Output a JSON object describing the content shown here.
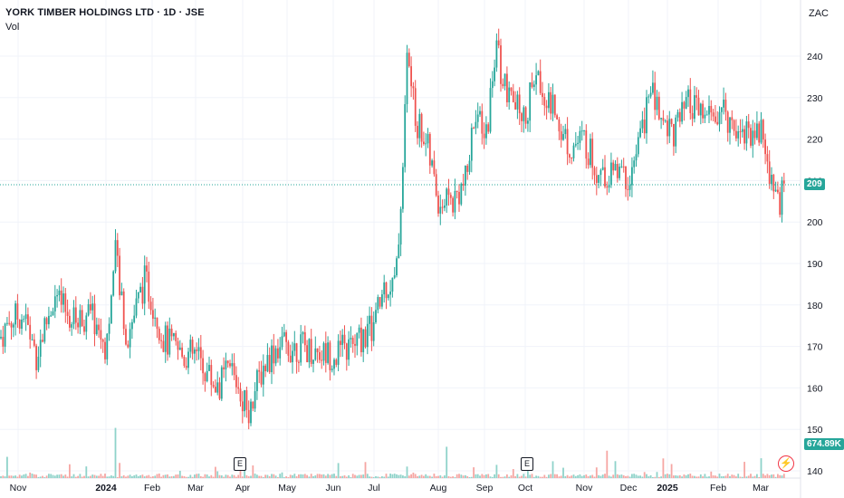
{
  "header": {
    "title": "YORK TIMBER HOLDINGS LTD · 1D · JSE",
    "indicator": "Vol",
    "currency": "ZAC"
  },
  "last_price_tag": "209",
  "volume_tag": "674.89K",
  "events": [
    {
      "label": "E",
      "date": "2024-04-02"
    },
    {
      "label": "E",
      "date": "2024-10-01"
    }
  ],
  "colors": {
    "up": "#26a69a",
    "down": "#ef5350",
    "vol_up": "#8fd3ca",
    "vol_down": "#f6a6a3",
    "grid": "#f0f3fa",
    "axis_text": "#131722"
  },
  "chart_data": {
    "type": "candlestick",
    "title": "YORK TIMBER HOLDINGS LTD · 1D · JSE",
    "y_ticks": [
      140,
      150,
      160,
      170,
      180,
      190,
      200,
      210,
      220,
      230,
      240
    ],
    "x_ticks": [
      "Nov",
      "2024",
      "Feb",
      "Mar",
      "Apr",
      "May",
      "Jun",
      "Jul",
      "Aug",
      "Sep",
      "Oct",
      "Nov",
      "Dec",
      "2025",
      "Feb",
      "Mar"
    ],
    "ylim": [
      138,
      250
    ],
    "last_price": 209,
    "segments": [
      {
        "x": "Nov-2023",
        "close": 172
      },
      {
        "x": "Dec-2023",
        "close": 175
      },
      {
        "x": "Jan-2024",
        "close": 180
      },
      {
        "x": "Feb-2024",
        "close": 180
      },
      {
        "x": "Mar-2024",
        "close": 168
      },
      {
        "x": "Apr-2024",
        "close": 160
      },
      {
        "x": "May-2024",
        "close": 168
      },
      {
        "x": "Jun-2024",
        "close": 170
      },
      {
        "x": "Jul-2024",
        "close": 215
      },
      {
        "x": "Aug-2024",
        "close": 208
      },
      {
        "x": "Sep-2024",
        "close": 230
      },
      {
        "x": "Oct-2024",
        "close": 225
      },
      {
        "x": "Nov-2024",
        "close": 220
      },
      {
        "x": "Dec-2024",
        "close": 225
      },
      {
        "x": "Jan-2025",
        "close": 225
      },
      {
        "x": "Feb-2025",
        "close": 225
      },
      {
        "x": "Mar-2025",
        "close": 209
      }
    ]
  }
}
